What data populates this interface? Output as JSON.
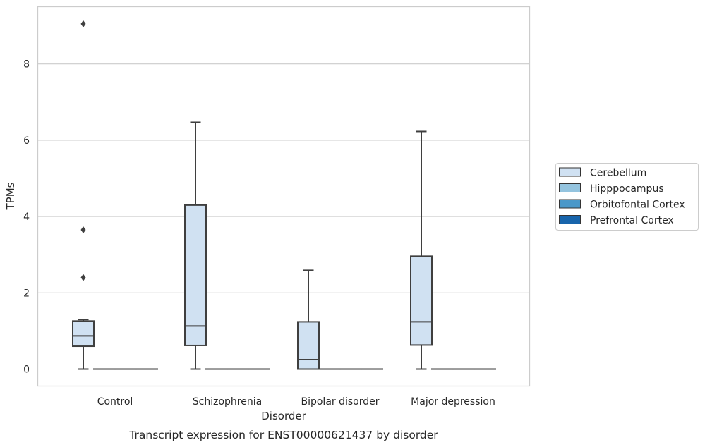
{
  "chart_data": {
    "type": "box",
    "title": "Transcript expression for ENST00000621437 by disorder",
    "xlabel": "Disorder",
    "ylabel": "TPMs",
    "categories": [
      "Control",
      "Schizophrenia",
      "Bipolar disorder",
      "Major depression"
    ],
    "yticks": [
      0,
      2,
      4,
      6,
      8
    ],
    "ylim": [
      -0.45,
      9.5
    ],
    "grid": "horizontal",
    "legend_position": "right",
    "series": [
      {
        "name": "Cerebellum",
        "color": "#d0e1f2",
        "boxes": [
          {
            "category": "Control",
            "whisker_low": 0,
            "q1": 0.6,
            "median": 0.87,
            "q3": 1.26,
            "whisker_high": 1.3,
            "outliers": [
              2.4,
              3.65,
              9.05
            ]
          },
          {
            "category": "Schizophrenia",
            "whisker_low": 0,
            "q1": 0.62,
            "median": 1.13,
            "q3": 4.3,
            "whisker_high": 6.47,
            "outliers": []
          },
          {
            "category": "Bipolar disorder",
            "whisker_low": 0,
            "q1": 0,
            "median": 0.25,
            "q3": 1.24,
            "whisker_high": 2.59,
            "outliers": []
          },
          {
            "category": "Major depression",
            "whisker_low": 0,
            "q1": 0.63,
            "median": 1.24,
            "q3": 2.96,
            "whisker_high": 6.23,
            "outliers": []
          }
        ]
      },
      {
        "name": "Hipppocampus",
        "color": "#94c4df",
        "boxes": [
          {
            "category": "Control",
            "whisker_low": 0,
            "q1": 0,
            "median": 0,
            "q3": 0,
            "whisker_high": 0,
            "outliers": []
          },
          {
            "category": "Schizophrenia",
            "whisker_low": 0,
            "q1": 0,
            "median": 0,
            "q3": 0,
            "whisker_high": 0,
            "outliers": []
          },
          {
            "category": "Bipolar disorder",
            "whisker_low": 0,
            "q1": 0,
            "median": 0,
            "q3": 0,
            "whisker_high": 0,
            "outliers": []
          },
          {
            "category": "Major depression",
            "whisker_low": 0,
            "q1": 0,
            "median": 0,
            "q3": 0,
            "whisker_high": 0,
            "outliers": []
          }
        ]
      },
      {
        "name": "Orbitofontal Cortex",
        "color": "#4a98c9",
        "boxes": [
          {
            "category": "Control",
            "whisker_low": 0,
            "q1": 0,
            "median": 0,
            "q3": 0,
            "whisker_high": 0,
            "outliers": []
          },
          {
            "category": "Schizophrenia",
            "whisker_low": 0,
            "q1": 0,
            "median": 0,
            "q3": 0,
            "whisker_high": 0,
            "outliers": []
          },
          {
            "category": "Bipolar disorder",
            "whisker_low": 0,
            "q1": 0,
            "median": 0,
            "q3": 0,
            "whisker_high": 0,
            "outliers": []
          },
          {
            "category": "Major depression",
            "whisker_low": 0,
            "q1": 0,
            "median": 0,
            "q3": 0,
            "whisker_high": 0,
            "outliers": []
          }
        ]
      },
      {
        "name": "Prefrontal Cortex",
        "color": "#1764ab",
        "boxes": [
          {
            "category": "Control",
            "whisker_low": 0,
            "q1": 0,
            "median": 0,
            "q3": 0,
            "whisker_high": 0,
            "outliers": []
          },
          {
            "category": "Schizophrenia",
            "whisker_low": 0,
            "q1": 0,
            "median": 0,
            "q3": 0,
            "whisker_high": 0,
            "outliers": []
          },
          {
            "category": "Bipolar disorder",
            "whisker_low": 0,
            "q1": 0,
            "median": 0,
            "q3": 0,
            "whisker_high": 0,
            "outliers": []
          },
          {
            "category": "Major depression",
            "whisker_low": 0,
            "q1": 0,
            "median": 0,
            "q3": 0,
            "whisker_high": 0,
            "outliers": []
          }
        ]
      }
    ]
  }
}
